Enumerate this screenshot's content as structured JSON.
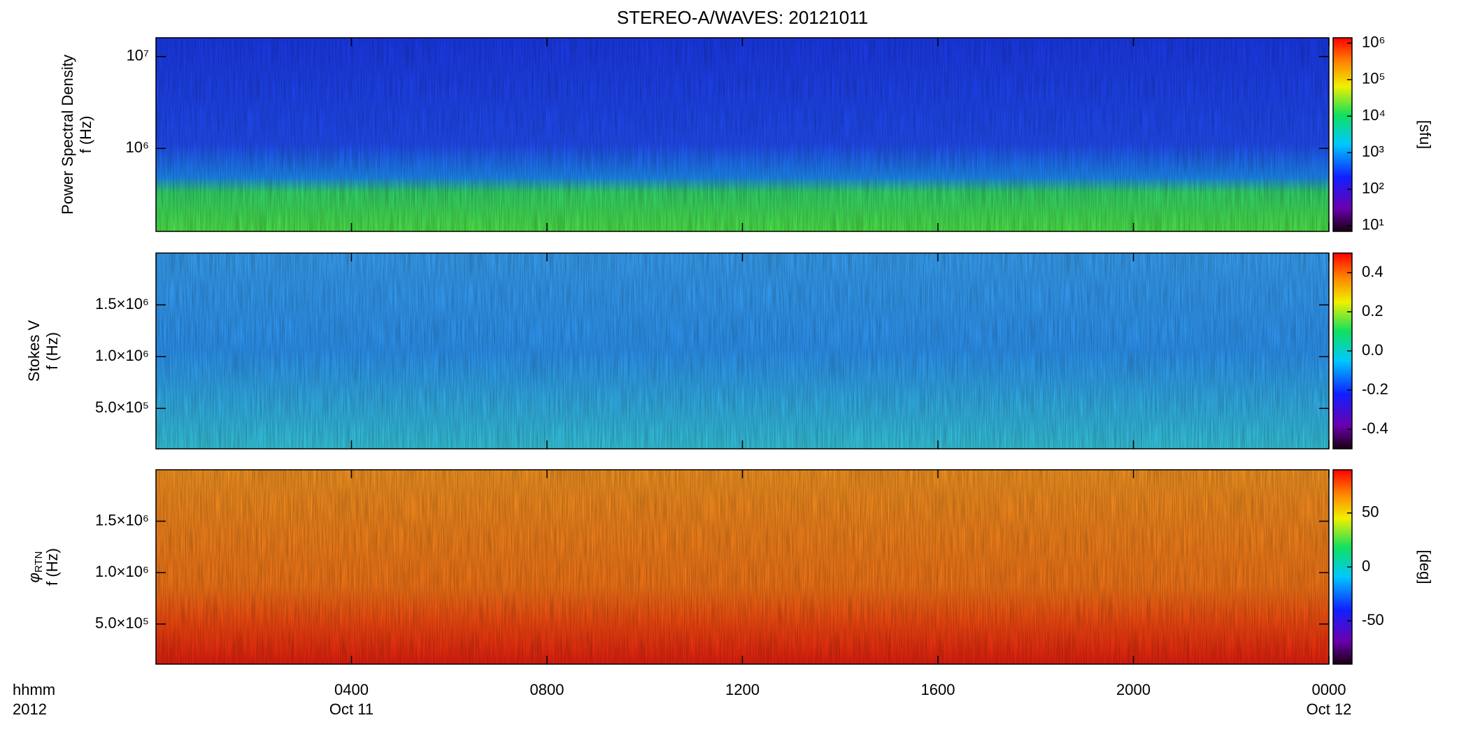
{
  "chart_data": [
    {
      "type": "heatmap",
      "title": "STEREO-A/WAVES: 20121011",
      "ylabel": "Power Spectral Density",
      "ylabel_unit": "f (Hz)",
      "ylog": true,
      "ylim": [
        125000,
        16000000
      ],
      "yticks": [
        {
          "value": 1000000,
          "label": "10⁶"
        },
        {
          "value": 10000000,
          "label": "10⁷"
        }
      ],
      "colorbar_log": true,
      "clim": [
        7,
        1400000
      ],
      "cticks": [
        {
          "value": 10,
          "label": "10¹"
        },
        {
          "value": 100,
          "label": "10²"
        },
        {
          "value": 1000,
          "label": "10³"
        },
        {
          "value": 10000,
          "label": "10⁴"
        },
        {
          "value": 100000,
          "label": "10⁵"
        },
        {
          "value": 1000000,
          "label": "10⁶"
        }
      ],
      "colorbar_label": "[sfu]"
    },
    {
      "type": "heatmap",
      "ylabel": "Stokes V",
      "ylabel_unit": "f (Hz)",
      "ylog": false,
      "ylim": [
        110000,
        2000000
      ],
      "yticks": [
        {
          "value": 500000,
          "label": "5.0×10⁵"
        },
        {
          "value": 1000000,
          "label": "1.0×10⁶"
        },
        {
          "value": 1500000,
          "label": "1.5×10⁶"
        }
      ],
      "colorbar_log": false,
      "clim": [
        -0.5,
        0.5
      ],
      "cticks": [
        -0.4,
        -0.2,
        {
          "value": 0,
          "label": "0.0"
        },
        0.2,
        0.4
      ]
    },
    {
      "type": "heatmap",
      "ylabel": "φ",
      "ylabel_sub": "RTN",
      "ylabel_unit": "f (Hz)",
      "ylog": false,
      "ylim": [
        110000,
        2000000
      ],
      "yticks": [
        {
          "value": 500000,
          "label": "5.0×10⁵"
        },
        {
          "value": 1000000,
          "label": "1.0×10⁶"
        },
        {
          "value": 1500000,
          "label": "1.5×10⁶"
        }
      ],
      "colorbar_log": false,
      "clim": [
        -90,
        90
      ],
      "cticks": [
        -50,
        0,
        50
      ],
      "colorbar_label": "[deg]",
      "xlim": [
        0,
        24
      ],
      "xticks": [
        {
          "value": 4,
          "label": "0400"
        },
        {
          "value": 8,
          "label": "0800"
        },
        {
          "value": 12,
          "label": "1200"
        },
        {
          "value": 16,
          "label": "1600"
        },
        {
          "value": 20,
          "label": "2000"
        },
        {
          "value": 24,
          "label": "0000"
        }
      ],
      "xticks_date": [
        {
          "value": 4,
          "label": "Oct 11"
        },
        {
          "value": 24,
          "label": "Oct 12"
        }
      ],
      "xlabel": "hhmm",
      "xlabel_year": "2012"
    }
  ]
}
